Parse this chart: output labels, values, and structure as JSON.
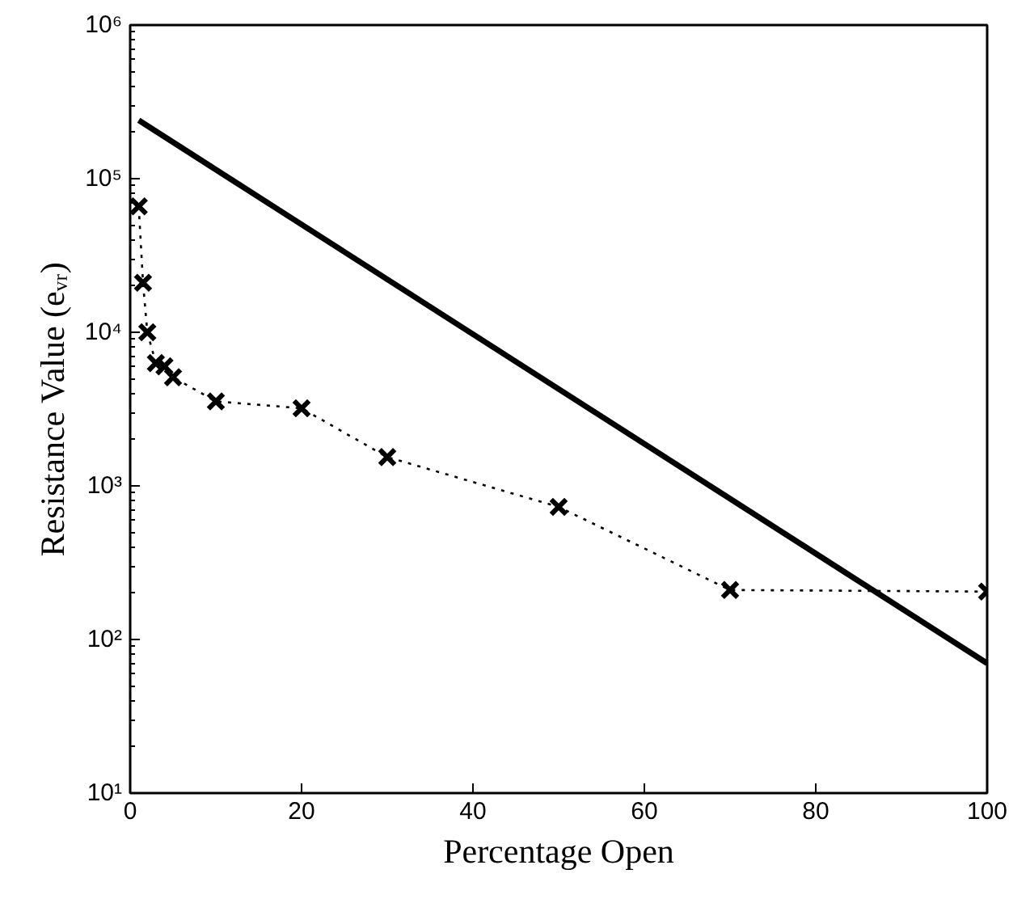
{
  "chart_data": {
    "type": "line",
    "xlabel": "Percentage Open",
    "ylabel": "Resistance Value (eᵥᵣ)",
    "log": "y",
    "xlim": [
      0,
      100
    ],
    "xticks": [
      0,
      20,
      40,
      60,
      80,
      100
    ],
    "ylim": [
      10,
      1000000
    ],
    "yticks": [
      {
        "value": 10,
        "label": "10¹"
      },
      {
        "value": 100,
        "label": "10²"
      },
      {
        "value": 1000,
        "label": "10³"
      },
      {
        "value": 10000,
        "label": "10⁴"
      },
      {
        "value": 100000,
        "label": "10⁵"
      },
      {
        "value": 1000000,
        "label": "10⁶"
      }
    ],
    "grid": false,
    "series": [
      {
        "color": "#000000",
        "marker": "cross",
        "line_style": "dotted",
        "x": [
          1,
          1.5,
          2,
          3,
          4,
          5,
          10,
          20,
          30,
          50,
          70,
          100
        ],
        "values": [
          66000,
          21000,
          10000,
          6300,
          6000,
          5100,
          3550,
          3200,
          1540,
          730,
          210,
          205
        ]
      },
      {
        "color": "#000000",
        "marker": "none",
        "line_style": "solid",
        "x": [
          1,
          100
        ],
        "values": [
          240000,
          70
        ]
      }
    ]
  }
}
